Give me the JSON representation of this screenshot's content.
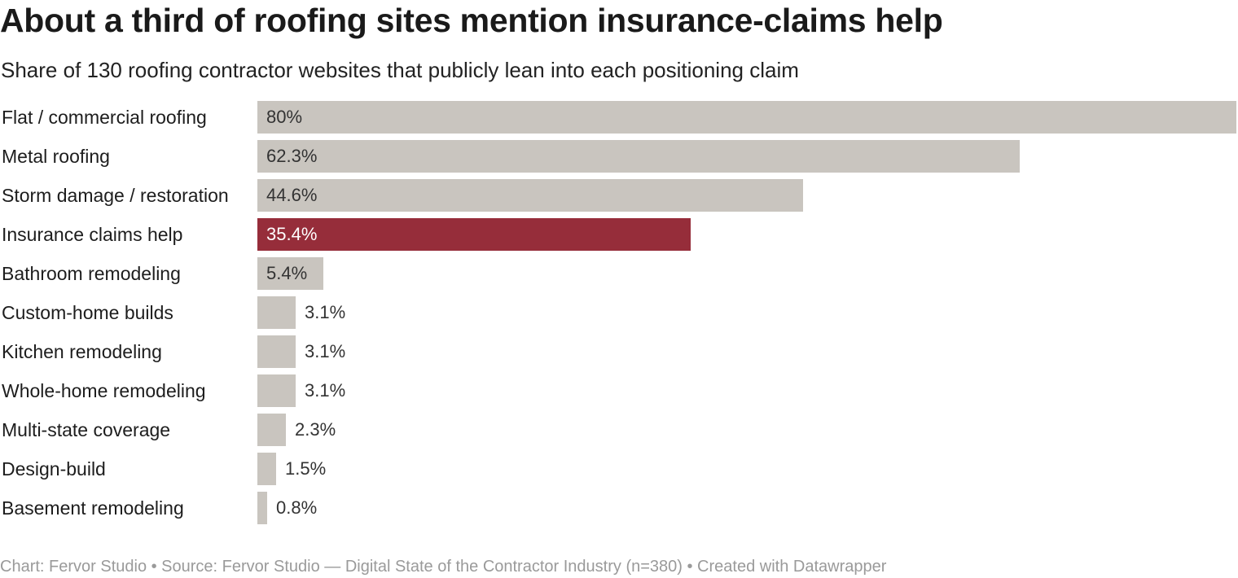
{
  "chart_data": {
    "type": "bar",
    "orientation": "horizontal",
    "title": "About a third of roofing sites mention insurance-claims help",
    "subtitle": "Share of 130 roofing contractor websites that publicly lean into each positioning claim",
    "categories": [
      "Flat / commercial roofing",
      "Metal roofing",
      "Storm damage / restoration",
      "Insurance claims help",
      "Bathroom remodeling",
      "Custom-home builds",
      "Kitchen remodeling",
      "Whole-home remodeling",
      "Multi-state coverage",
      "Design-build",
      "Basement remodeling"
    ],
    "values": [
      80,
      62.3,
      44.6,
      35.4,
      5.4,
      3.1,
      3.1,
      3.1,
      2.3,
      1.5,
      0.8
    ],
    "value_labels": [
      "80%",
      "62.3%",
      "44.6%",
      "35.4%",
      "5.4%",
      "3.1%",
      "3.1%",
      "3.1%",
      "2.3%",
      "1.5%",
      "0.8%"
    ],
    "unit": "%",
    "xlim": [
      0,
      80
    ],
    "highlight_category": "Insurance claims help",
    "colors": {
      "default_bar": "#c9c5bf",
      "highlight_bar": "#962d3a",
      "label_dark": "#333333",
      "label_light": "#ffffff"
    },
    "grid": false,
    "legend": "none"
  },
  "footer": {
    "text": "Chart: Fervor Studio • Source: Fervor Studio — Digital State of the Contractor Industry (n=380) • Created with Datawrapper"
  }
}
